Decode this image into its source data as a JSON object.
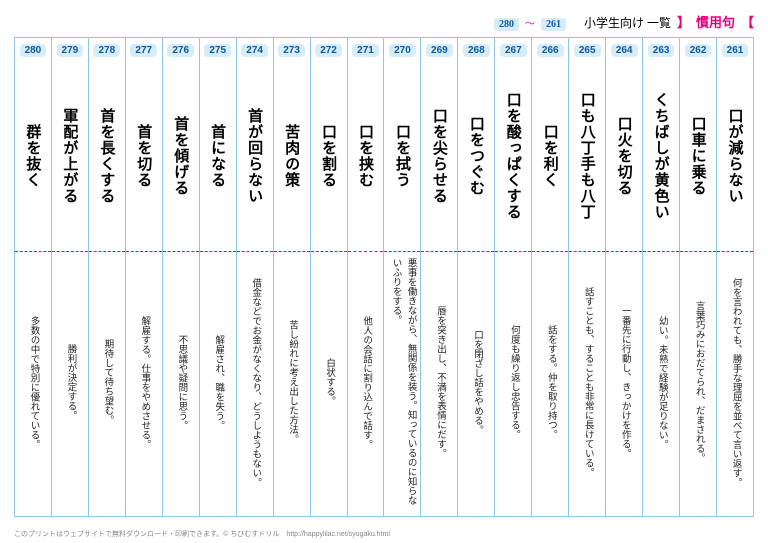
{
  "header": {
    "bracket_open": "【",
    "category": "慣用句",
    "bracket_close": "】",
    "subtitle": "小学生向け 一覧",
    "range_from": "261",
    "tilde": "〜",
    "range_to": "280"
  },
  "entries": [
    {
      "num": "261",
      "idiom": "口が減らない",
      "meaning": "何を言われても、勝手な理屈を並べて言い返す。"
    },
    {
      "num": "262",
      "idiom": "口車に乗る",
      "meaning": "言葉巧みにおだてられ、だまされる。"
    },
    {
      "num": "263",
      "idiom": "くちばしが黄色い",
      "meaning": "幼い。未熟で経験が足りない。"
    },
    {
      "num": "264",
      "idiom": "口火を切る",
      "meaning": "一番先に行動し、きっかけを作る。"
    },
    {
      "num": "265",
      "idiom": "口も八丁手も八丁",
      "meaning": "話すことも、することも非常に長けている。"
    },
    {
      "num": "266",
      "idiom": "口を利く",
      "meaning": "話をする。仲を取り持つ。"
    },
    {
      "num": "267",
      "idiom": "口を酸っぱくする",
      "meaning": "何度も繰り返し忠告する。"
    },
    {
      "num": "268",
      "idiom": "口をつぐむ",
      "meaning": "口を閉ざし話をやめる。"
    },
    {
      "num": "269",
      "idiom": "口を尖らせる",
      "meaning": "唇を突き出し、不満を表情にだす。"
    },
    {
      "num": "270",
      "idiom": "口を拭う",
      "meaning": "悪事を働きながら、無関係を装う。知っているのに知らないふりをする。"
    },
    {
      "num": "271",
      "idiom": "口を挟む",
      "meaning": "他人の会話に割り込んで話す。"
    },
    {
      "num": "272",
      "idiom": "口を割る",
      "meaning": "白状する。"
    },
    {
      "num": "273",
      "idiom": "苦肉の策",
      "meaning": "苦し紛れに考え出した方法。"
    },
    {
      "num": "274",
      "idiom": "首が回らない",
      "meaning": "借金などでお金がなくなり、どうしようもない。"
    },
    {
      "num": "275",
      "idiom": "首になる",
      "meaning": "解雇され、職を失う。"
    },
    {
      "num": "276",
      "idiom": "首を傾げる",
      "meaning": "不思議や疑問に思う。"
    },
    {
      "num": "277",
      "idiom": "首を切る",
      "meaning": "解雇する。仕事をやめさせる。"
    },
    {
      "num": "278",
      "idiom": "首を長くする",
      "meaning": "期待して待ち望む。"
    },
    {
      "num": "279",
      "idiom": "軍配が上がる",
      "meaning": "勝利が決定する。"
    },
    {
      "num": "280",
      "idiom": "群を抜く",
      "meaning": "多数の中で特別に優れている。"
    }
  ],
  "footer": "このプリントはウェブサイトで無料ダウンロード・印刷できます。© ちびむすドリル　http://happylilac.net/syogaku.html"
}
